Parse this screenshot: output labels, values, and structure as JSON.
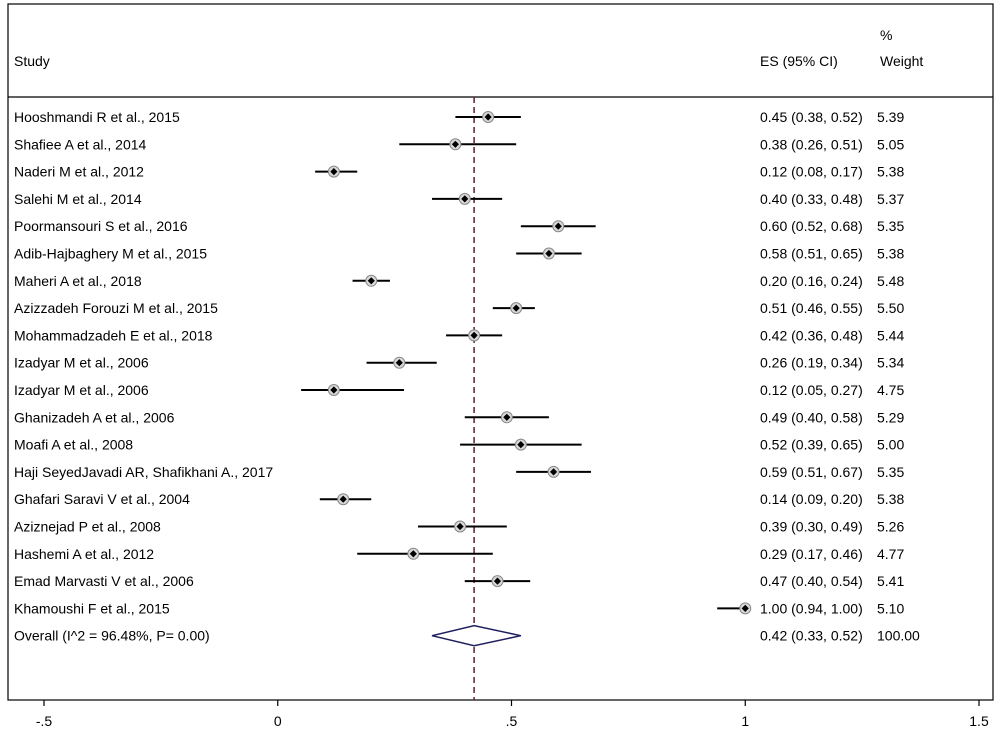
{
  "header": {
    "study_label": "Study",
    "es_label": "ES (95% CI)",
    "weight_label_pct": "%",
    "weight_label": "Weight"
  },
  "chart_data": {
    "type": "forest",
    "x_axis": {
      "xlim": [
        -0.5,
        1.5
      ],
      "ticks": [
        -0.5,
        0,
        0.5,
        1,
        1.5
      ],
      "tick_labels": [
        "-.5",
        "0",
        ".5",
        "1",
        "1.5"
      ]
    },
    "overall_line_value": 0.42,
    "studies": [
      {
        "name": "Hooshmandi R et al., 2015",
        "es": 0.45,
        "lo": 0.38,
        "hi": 0.52,
        "weight": "5.39",
        "es_text": "0.45 (0.38, 0.52)"
      },
      {
        "name": "Shafiee A et al., 2014",
        "es": 0.38,
        "lo": 0.26,
        "hi": 0.51,
        "weight": "5.05",
        "es_text": "0.38 (0.26, 0.51)"
      },
      {
        "name": "Naderi M et al., 2012",
        "es": 0.12,
        "lo": 0.08,
        "hi": 0.17,
        "weight": "5.38",
        "es_text": "0.12 (0.08, 0.17)"
      },
      {
        "name": "Salehi M et al., 2014",
        "es": 0.4,
        "lo": 0.33,
        "hi": 0.48,
        "weight": "5.37",
        "es_text": "0.40 (0.33, 0.48)"
      },
      {
        "name": "Poormansouri S et al., 2016",
        "es": 0.6,
        "lo": 0.52,
        "hi": 0.68,
        "weight": "5.35",
        "es_text": "0.60 (0.52, 0.68)"
      },
      {
        "name": "Adib-Hajbaghery M et al., 2015",
        "es": 0.58,
        "lo": 0.51,
        "hi": 0.65,
        "weight": "5.38",
        "es_text": "0.58 (0.51, 0.65)"
      },
      {
        "name": "Maheri A et al., 2018",
        "es": 0.2,
        "lo": 0.16,
        "hi": 0.24,
        "weight": "5.48",
        "es_text": "0.20 (0.16, 0.24)"
      },
      {
        "name": "Azizzadeh Forouzi M et al., 2015",
        "es": 0.51,
        "lo": 0.46,
        "hi": 0.55,
        "weight": "5.50",
        "es_text": "0.51 (0.46, 0.55)"
      },
      {
        "name": "Mohammadzadeh E et al., 2018",
        "es": 0.42,
        "lo": 0.36,
        "hi": 0.48,
        "weight": "5.44",
        "es_text": "0.42 (0.36, 0.48)"
      },
      {
        "name": "Izadyar M et al., 2006",
        "es": 0.26,
        "lo": 0.19,
        "hi": 0.34,
        "weight": "5.34",
        "es_text": "0.26 (0.19, 0.34)"
      },
      {
        "name": "Izadyar M et al., 2006",
        "es": 0.12,
        "lo": 0.05,
        "hi": 0.27,
        "weight": "4.75",
        "es_text": "0.12 (0.05, 0.27)"
      },
      {
        "name": "Ghanizadeh A et al., 2006",
        "es": 0.49,
        "lo": 0.4,
        "hi": 0.58,
        "weight": "5.29",
        "es_text": "0.49 (0.40, 0.58)"
      },
      {
        "name": "Moafi A et al., 2008",
        "es": 0.52,
        "lo": 0.39,
        "hi": 0.65,
        "weight": "5.00",
        "es_text": "0.52 (0.39, 0.65)"
      },
      {
        "name": "Haji SeyedJavadi AR, Shafikhani A., 2017",
        "es": 0.59,
        "lo": 0.51,
        "hi": 0.67,
        "weight": "5.35",
        "es_text": "0.59 (0.51, 0.67)"
      },
      {
        "name": "Ghafari Saravi V et al., 2004",
        "es": 0.14,
        "lo": 0.09,
        "hi": 0.2,
        "weight": "5.38",
        "es_text": "0.14 (0.09, 0.20)"
      },
      {
        "name": "Aziznejad P et al., 2008",
        "es": 0.39,
        "lo": 0.3,
        "hi": 0.49,
        "weight": "5.26",
        "es_text": "0.39 (0.30, 0.49)"
      },
      {
        "name": "Hashemi A et al., 2012",
        "es": 0.29,
        "lo": 0.17,
        "hi": 0.46,
        "weight": "4.77",
        "es_text": "0.29 (0.17, 0.46)"
      },
      {
        "name": "Emad Marvasti V et al., 2006",
        "es": 0.47,
        "lo": 0.4,
        "hi": 0.54,
        "weight": "5.41",
        "es_text": "0.47 (0.40, 0.54)"
      },
      {
        "name": "Khamoushi F et al., 2015",
        "es": 1.0,
        "lo": 0.94,
        "hi": 1.0,
        "weight": "5.10",
        "es_text": "1.00 (0.94, 1.00)"
      }
    ],
    "overall": {
      "label": "Overall  (I^2 = 96.48%, P= 0.00)",
      "es": 0.42,
      "lo": 0.33,
      "hi": 0.52,
      "weight": "100.00",
      "es_text": "0.42 (0.33, 0.52)"
    },
    "colors": {
      "diamond": "#1f1f5f",
      "ref_line": "#6b2a3a",
      "marker_ring": "#888888",
      "marker_dot": "#000000",
      "frame": "#000000"
    }
  }
}
